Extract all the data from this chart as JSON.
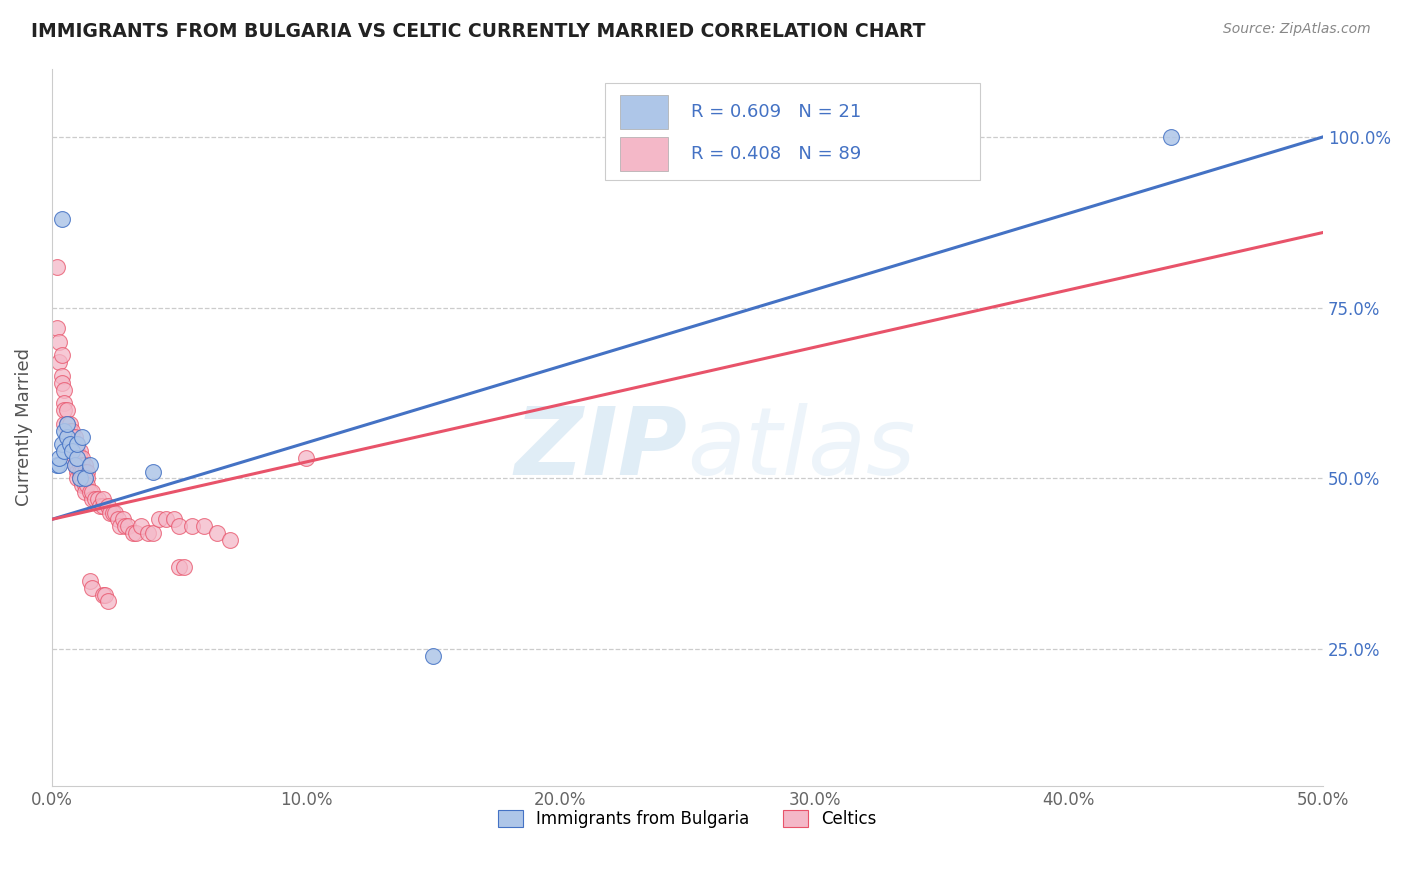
{
  "title": "IMMIGRANTS FROM BULGARIA VS CELTIC CURRENTLY MARRIED CORRELATION CHART",
  "source_text": "Source: ZipAtlas.com",
  "ylabel_left": "Currently Married",
  "watermark_zip": "ZIP",
  "watermark_atlas": "atlas",
  "xmin": 0.0,
  "xmax": 0.5,
  "ymin": 0.05,
  "ymax": 1.1,
  "right_yticks": [
    0.25,
    0.5,
    0.75,
    1.0
  ],
  "right_yticklabels": [
    "25.0%",
    "50.0%",
    "75.0%",
    "100.0%"
  ],
  "bottom_xticks": [
    0.0,
    0.1,
    0.2,
    0.3,
    0.4,
    0.5
  ],
  "bottom_xticklabels": [
    "0.0%",
    "10.0%",
    "20.0%",
    "30.0%",
    "40.0%",
    "50.0%"
  ],
  "legend_bottom_entries": [
    {
      "label": "Immigrants from Bulgaria",
      "color": "#aec6e8"
    },
    {
      "label": "Celtics",
      "color": "#f4b8c8"
    }
  ],
  "bulgaria_line_x": [
    0.0,
    0.5
  ],
  "bulgaria_line_y": [
    0.44,
    1.0
  ],
  "celtic_line_x": [
    0.0,
    0.5
  ],
  "celtic_line_y": [
    0.44,
    0.86
  ],
  "bulgaria_scatter": [
    [
      0.004,
      0.88
    ],
    [
      0.002,
      0.52
    ],
    [
      0.003,
      0.52
    ],
    [
      0.003,
      0.53
    ],
    [
      0.004,
      0.55
    ],
    [
      0.005,
      0.54
    ],
    [
      0.005,
      0.57
    ],
    [
      0.006,
      0.56
    ],
    [
      0.006,
      0.58
    ],
    [
      0.007,
      0.55
    ],
    [
      0.008,
      0.54
    ],
    [
      0.009,
      0.52
    ],
    [
      0.01,
      0.53
    ],
    [
      0.01,
      0.55
    ],
    [
      0.011,
      0.5
    ],
    [
      0.012,
      0.56
    ],
    [
      0.013,
      0.5
    ],
    [
      0.015,
      0.52
    ],
    [
      0.04,
      0.51
    ],
    [
      0.15,
      0.24
    ],
    [
      0.44,
      1.0
    ]
  ],
  "celtic_scatter": [
    [
      0.002,
      0.81
    ],
    [
      0.002,
      0.72
    ],
    [
      0.003,
      0.7
    ],
    [
      0.003,
      0.67
    ],
    [
      0.004,
      0.68
    ],
    [
      0.004,
      0.65
    ],
    [
      0.004,
      0.64
    ],
    [
      0.005,
      0.63
    ],
    [
      0.005,
      0.61
    ],
    [
      0.005,
      0.6
    ],
    [
      0.005,
      0.58
    ],
    [
      0.006,
      0.6
    ],
    [
      0.006,
      0.58
    ],
    [
      0.006,
      0.56
    ],
    [
      0.007,
      0.58
    ],
    [
      0.007,
      0.57
    ],
    [
      0.007,
      0.56
    ],
    [
      0.007,
      0.55
    ],
    [
      0.008,
      0.57
    ],
    [
      0.008,
      0.56
    ],
    [
      0.008,
      0.55
    ],
    [
      0.008,
      0.54
    ],
    [
      0.009,
      0.56
    ],
    [
      0.009,
      0.55
    ],
    [
      0.009,
      0.54
    ],
    [
      0.009,
      0.53
    ],
    [
      0.009,
      0.52
    ],
    [
      0.01,
      0.55
    ],
    [
      0.01,
      0.54
    ],
    [
      0.01,
      0.53
    ],
    [
      0.01,
      0.52
    ],
    [
      0.01,
      0.51
    ],
    [
      0.01,
      0.5
    ],
    [
      0.011,
      0.54
    ],
    [
      0.011,
      0.53
    ],
    [
      0.011,
      0.52
    ],
    [
      0.011,
      0.51
    ],
    [
      0.011,
      0.5
    ],
    [
      0.012,
      0.53
    ],
    [
      0.012,
      0.52
    ],
    [
      0.012,
      0.51
    ],
    [
      0.012,
      0.5
    ],
    [
      0.012,
      0.49
    ],
    [
      0.013,
      0.52
    ],
    [
      0.013,
      0.51
    ],
    [
      0.013,
      0.5
    ],
    [
      0.013,
      0.49
    ],
    [
      0.013,
      0.48
    ],
    [
      0.014,
      0.51
    ],
    [
      0.014,
      0.5
    ],
    [
      0.014,
      0.49
    ],
    [
      0.015,
      0.48
    ],
    [
      0.016,
      0.47
    ],
    [
      0.016,
      0.48
    ],
    [
      0.017,
      0.47
    ],
    [
      0.018,
      0.47
    ],
    [
      0.019,
      0.46
    ],
    [
      0.02,
      0.46
    ],
    [
      0.02,
      0.47
    ],
    [
      0.022,
      0.46
    ],
    [
      0.023,
      0.45
    ],
    [
      0.024,
      0.45
    ],
    [
      0.025,
      0.45
    ],
    [
      0.026,
      0.44
    ],
    [
      0.027,
      0.43
    ],
    [
      0.028,
      0.44
    ],
    [
      0.029,
      0.43
    ],
    [
      0.03,
      0.43
    ],
    [
      0.032,
      0.42
    ],
    [
      0.033,
      0.42
    ],
    [
      0.035,
      0.43
    ],
    [
      0.038,
      0.42
    ],
    [
      0.04,
      0.42
    ],
    [
      0.042,
      0.44
    ],
    [
      0.045,
      0.44
    ],
    [
      0.048,
      0.44
    ],
    [
      0.05,
      0.43
    ],
    [
      0.055,
      0.43
    ],
    [
      0.06,
      0.43
    ],
    [
      0.065,
      0.42
    ],
    [
      0.07,
      0.41
    ],
    [
      0.015,
      0.35
    ],
    [
      0.016,
      0.34
    ],
    [
      0.02,
      0.33
    ],
    [
      0.021,
      0.33
    ],
    [
      0.022,
      0.32
    ],
    [
      0.05,
      0.37
    ],
    [
      0.052,
      0.37
    ],
    [
      0.1,
      0.53
    ]
  ],
  "bulgaria_line_color": "#4472c4",
  "celtic_line_color": "#e8536a",
  "bulgaria_dot_color": "#aec6e8",
  "celtic_dot_color": "#f4b8c8",
  "grid_color": "#cccccc",
  "background_color": "#ffffff",
  "title_color": "#222222",
  "r_value_color": "#4472c4"
}
